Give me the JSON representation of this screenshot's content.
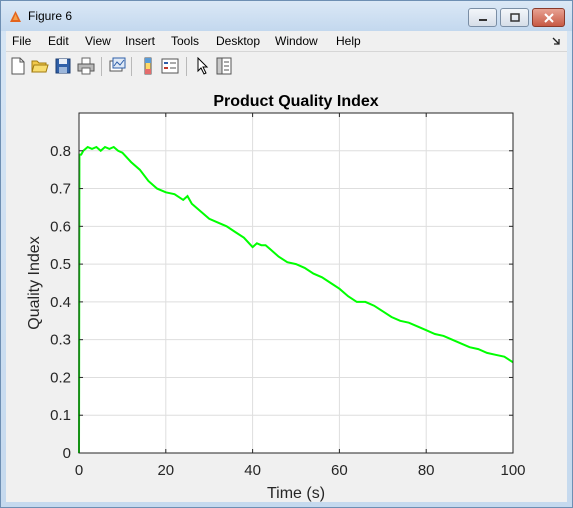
{
  "window": {
    "title": "Figure 6"
  },
  "menubar": {
    "items": [
      "File",
      "Edit",
      "View",
      "Insert",
      "Tools",
      "Desktop",
      "Window",
      "Help"
    ]
  },
  "toolbar": {
    "icons": [
      "new-figure-icon",
      "open-file-icon",
      "save-icon",
      "print-icon",
      "link-plot-icon",
      "insert-colorbar-icon",
      "insert-legend-icon",
      "pointer-icon",
      "property-inspector-icon"
    ]
  },
  "chart_data": {
    "type": "line",
    "title": "Product Quality Index",
    "xlabel": "Time (s)",
    "ylabel": "Quality Index",
    "xlim": [
      0,
      100
    ],
    "ylim": [
      0,
      0.9
    ],
    "xticks": [
      "0",
      "20",
      "40",
      "60",
      "80",
      "100"
    ],
    "yticks": [
      "0",
      "0.1",
      "0.2",
      "0.3",
      "0.4",
      "0.5",
      "0.6",
      "0.7",
      "0.8"
    ],
    "grid": true,
    "series": [
      {
        "color": "#00ff00",
        "x": [
          0,
          0.1,
          0.5,
          1,
          2,
          3,
          4,
          5,
          6,
          7,
          8,
          9,
          10,
          12,
          14,
          16,
          18,
          20,
          22,
          24,
          25,
          26,
          28,
          30,
          32,
          34,
          36,
          38,
          40,
          41,
          42,
          43,
          44,
          46,
          48,
          50,
          52,
          54,
          56,
          58,
          60,
          62,
          64,
          66,
          68,
          70,
          72,
          74,
          76,
          78,
          80,
          82,
          84,
          86,
          88,
          90,
          92,
          94,
          96,
          98,
          100
        ],
        "y": [
          0,
          0.79,
          0.79,
          0.8,
          0.81,
          0.805,
          0.81,
          0.8,
          0.81,
          0.805,
          0.81,
          0.8,
          0.795,
          0.77,
          0.75,
          0.72,
          0.7,
          0.69,
          0.685,
          0.67,
          0.68,
          0.66,
          0.64,
          0.62,
          0.61,
          0.6,
          0.585,
          0.57,
          0.545,
          0.555,
          0.55,
          0.55,
          0.54,
          0.52,
          0.505,
          0.5,
          0.49,
          0.475,
          0.465,
          0.45,
          0.435,
          0.415,
          0.4,
          0.4,
          0.39,
          0.375,
          0.36,
          0.35,
          0.345,
          0.335,
          0.325,
          0.315,
          0.31,
          0.3,
          0.29,
          0.28,
          0.275,
          0.265,
          0.26,
          0.255,
          0.24
        ]
      }
    ]
  }
}
